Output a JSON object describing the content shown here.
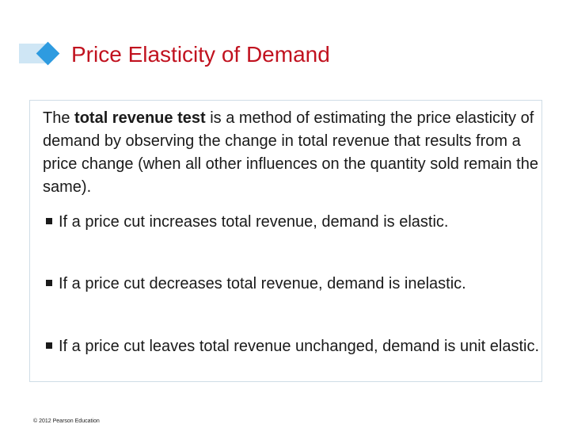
{
  "slide": {
    "title": "Price Elasticity of Demand",
    "intro": {
      "before": "The ",
      "term": "total revenue test",
      "after": " is a method of estimating the price elasticity of demand by observing the change in total revenue that results from a price change (when all other influences on the quantity sold remain the same)."
    },
    "bullets": [
      "If a price cut increases total revenue, demand is elastic.",
      "If a price cut decreases total revenue, demand is inelastic.",
      "If a price cut leaves total revenue unchanged, demand is unit elastic."
    ],
    "footer": "© 2012 Pearson Education"
  },
  "colors": {
    "title": "#c1121f",
    "accent_diamond": "#2e9be0",
    "accent_stripe": "#cfe6f5",
    "box_border": "#cfdde6"
  },
  "icons": {
    "title_marker": "diamond-icon",
    "bullet": "square-bullet-icon"
  }
}
